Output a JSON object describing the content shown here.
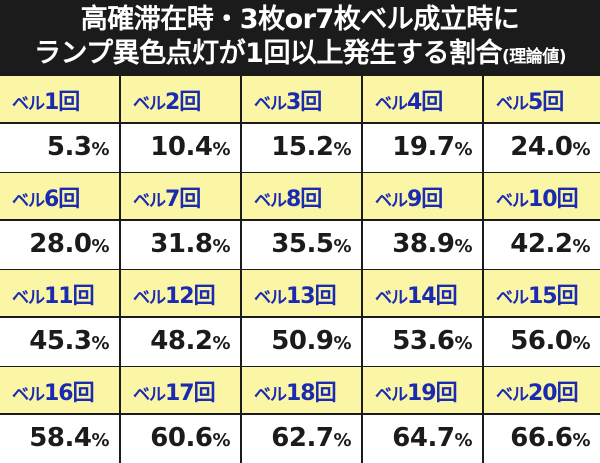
{
  "title": {
    "line1": "高確滞在時・3枚or7枚ベル成立時に",
    "line2": "ランプ異色点灯が1回以上発生する割合",
    "note": "(理論値)"
  },
  "table": {
    "rows": [
      {
        "labels": [
          "ベル1回",
          "ベル2回",
          "ベル3回",
          "ベル4回",
          "ベル5回"
        ],
        "values": [
          "5.3%",
          "10.4%",
          "15.2%",
          "19.7%",
          "24.0%"
        ]
      },
      {
        "labels": [
          "ベル6回",
          "ベル7回",
          "ベル8回",
          "ベル9回",
          "ベル10回"
        ],
        "values": [
          "28.0%",
          "31.8%",
          "35.5%",
          "38.9%",
          "42.2%"
        ]
      },
      {
        "labels": [
          "ベル11回",
          "ベル12回",
          "ベル13回",
          "ベル14回",
          "ベル15回"
        ],
        "values": [
          "45.3%",
          "48.2%",
          "50.9%",
          "53.6%",
          "56.0%"
        ]
      },
      {
        "labels": [
          "ベル16回",
          "ベル17回",
          "ベル18回",
          "ベル19回",
          "ベル20回"
        ],
        "values": [
          "58.4%",
          "60.6%",
          "62.7%",
          "64.7%",
          "66.6%"
        ]
      }
    ]
  },
  "colors": {
    "label_bg": "#fbf6a6",
    "label_text": "#1a2bb0",
    "value_bg": "#ffffff",
    "background": "#1b1b1b"
  }
}
